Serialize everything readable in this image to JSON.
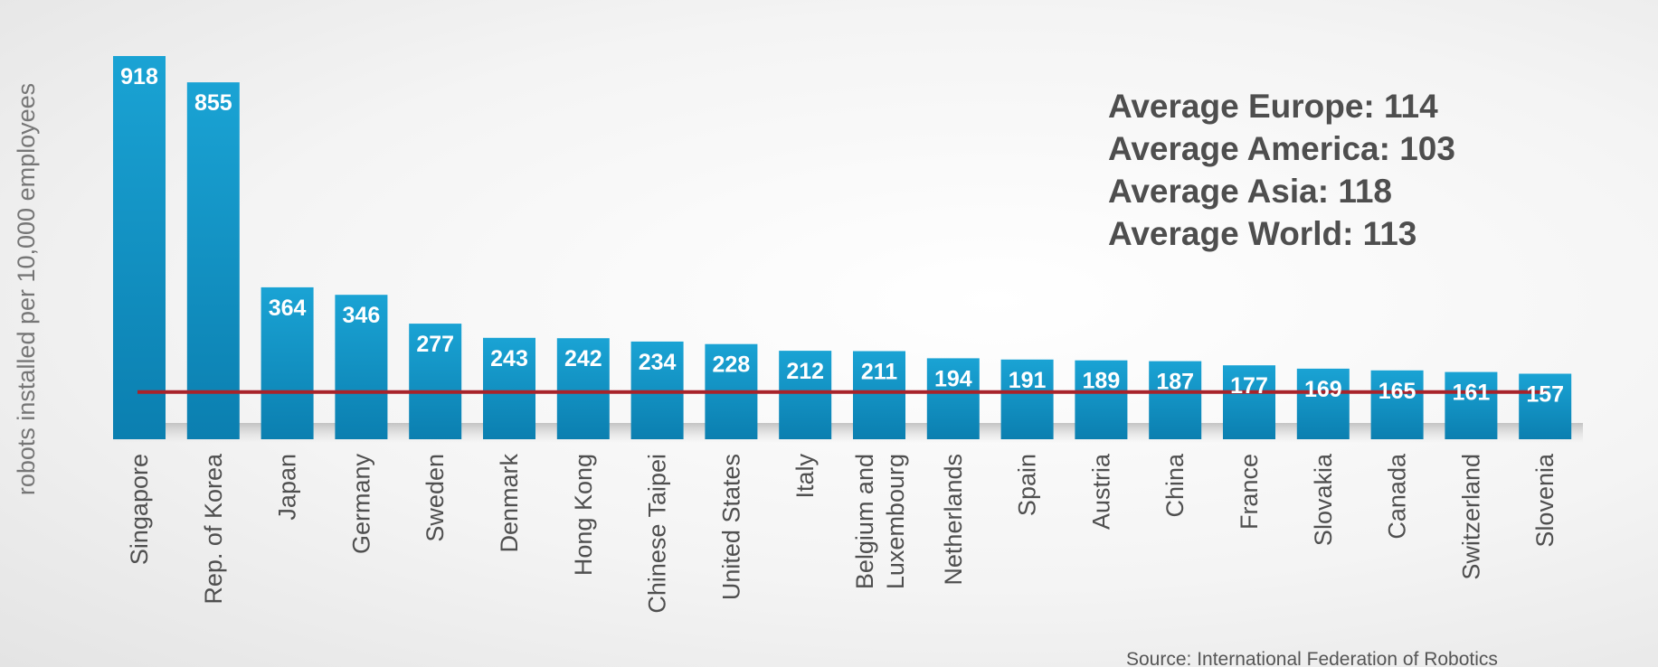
{
  "chart_data": {
    "type": "bar",
    "ylabel": "robots installed per 10,000 employees",
    "categories": [
      "Singapore",
      "Rep. of Korea",
      "Japan",
      "Germany",
      "Sweden",
      "Denmark",
      "Hong Kong",
      "Chinese Taipei",
      "United States",
      "Italy",
      "Belgium and Luxembourg",
      "Netherlands",
      "Spain",
      "Austria",
      "China",
      "France",
      "Slovakia",
      "Canada",
      "Switzerland",
      "Slovenia"
    ],
    "values": [
      918,
      855,
      364,
      346,
      277,
      243,
      242,
      234,
      228,
      212,
      211,
      194,
      191,
      189,
      187,
      177,
      169,
      165,
      161,
      157
    ],
    "ylim": [
      0,
      918
    ],
    "reference_line": {
      "value": 113
    },
    "averages": [
      "Average Europe: 114",
      "Average America: 103",
      "Average Asia: 118",
      "Average World: 113"
    ],
    "source": "Source: International Federation of Robotics",
    "colors": {
      "bar_top": "#1aa3d4",
      "bar_bottom": "#0b7fb0",
      "reference_line": "#a8232a"
    },
    "grid": false,
    "legend": "none"
  }
}
